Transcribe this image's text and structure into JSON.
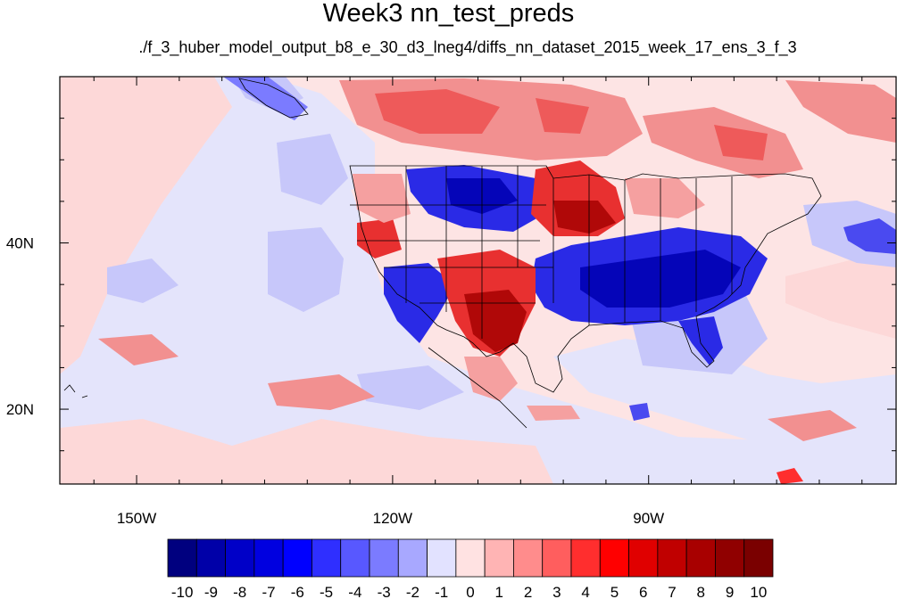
{
  "title": "Week3 nn_test_preds",
  "subtitle": "./f_3_huber_model_output_b8_e_30_d3_lneg4/diffs_nn_dataset_2015_week_17_ens_3_f_3",
  "lon_ticks": [
    {
      "value": -150,
      "label": "150W"
    },
    {
      "value": -120,
      "label": "120W"
    },
    {
      "value": -90,
      "label": "90W"
    }
  ],
  "lat_ticks": [
    {
      "value": 40,
      "label": "40N"
    },
    {
      "value": 20,
      "label": "20N"
    }
  ],
  "extent": {
    "lon": [
      -159,
      -61
    ],
    "lat": [
      11,
      60
    ]
  },
  "colorbar": {
    "labels": [
      "-10",
      "-9",
      "-8",
      "-7",
      "-6",
      "-5",
      "-4",
      "-3",
      "-2",
      "-1",
      "0",
      "1",
      "2",
      "3",
      "4",
      "5",
      "6",
      "7",
      "8",
      "9",
      "10"
    ],
    "colors": [
      "#00007f",
      "#0000a8",
      "#0000c8",
      "#0000e0",
      "#0000ff",
      "#2f2fff",
      "#5858ff",
      "#7b7bff",
      "#a8a8ff",
      "#e2e2ff",
      "#ffe2e2",
      "#ffb4b4",
      "#ff8c8c",
      "#ff5e5e",
      "#ff2e2e",
      "#ff0000",
      "#e00000",
      "#c00000",
      "#a80000",
      "#900000",
      "#7a0000"
    ]
  },
  "fields": {
    "background": "#fde4e4",
    "regions": [
      {
        "type": "weak_negative",
        "color": "#e4e4fb"
      },
      {
        "type": "negative",
        "color": "#c7c7fa"
      },
      {
        "type": "strong_negative",
        "color": "#1010d8"
      },
      {
        "type": "weak_positive",
        "color": "#fcc6c6"
      },
      {
        "type": "positive",
        "color": "#f06060"
      },
      {
        "type": "strong_positive",
        "color": "#c81010"
      }
    ]
  }
}
